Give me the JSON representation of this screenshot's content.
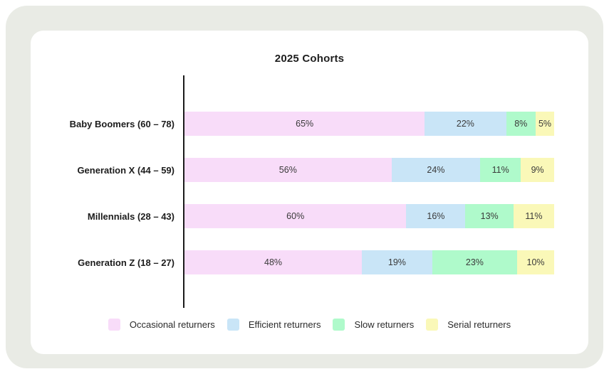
{
  "card": {
    "title": "2025 Cohorts"
  },
  "chart_data": {
    "type": "bar",
    "orientation": "horizontal",
    "stacked": true,
    "title": "2025 Cohorts",
    "unit": "%",
    "xlim": [
      0,
      100
    ],
    "grid": false,
    "legend_position": "bottom",
    "categories": [
      "Baby Boomers (60 – 78)",
      "Generation X (44 – 59)",
      "Millennials (28 – 43)",
      "Generation Z (18 – 27)"
    ],
    "series": [
      {
        "name": "Occasional returners",
        "color": "#F8DCF9",
        "values": [
          65,
          56,
          60,
          48
        ]
      },
      {
        "name": "Efficient returners",
        "color": "#C9E5F7",
        "values": [
          22,
          24,
          16,
          19
        ]
      },
      {
        "name": "Slow returners",
        "color": "#AFFACB",
        "values": [
          8,
          11,
          13,
          23
        ]
      },
      {
        "name": "Serial returners",
        "color": "#FAF8B8",
        "values": [
          5,
          9,
          11,
          10
        ]
      }
    ]
  },
  "colors": {
    "page_bg": "#FFFFFF",
    "frame_bg": "#E9EBE5",
    "card_bg": "#FFFFFF",
    "axis_line": "#1B1B1B",
    "title_text": "#1E1E1E",
    "category_text": "#1C1C1C",
    "value_text": "#3A3A3A",
    "legend_text": "#2B2B2B"
  }
}
